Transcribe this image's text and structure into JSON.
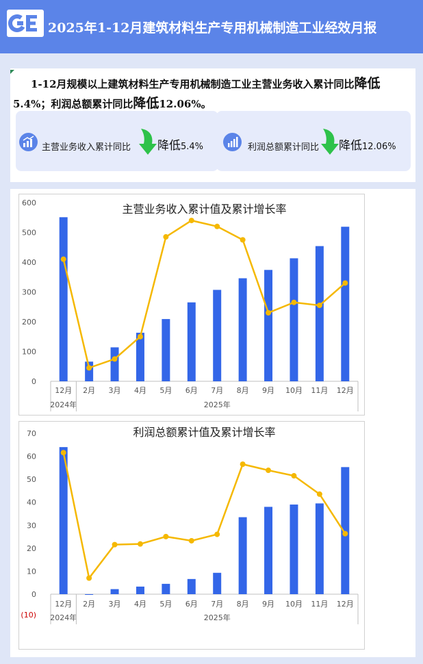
{
  "header": {
    "title": "2025年1-12月建筑材料生产专用机械制造工业经效月报"
  },
  "summary": {
    "part1": "1-12月规模以上建筑材料生产专用机械制造工业主营业务收入累计同比",
    "part2": "降低",
    "part3": "5.4%；利润总额累计同比",
    "part4": "降低",
    "part5": "12.06%。"
  },
  "kpis": [
    {
      "label": "主营业务收入累计同比",
      "direction": "降低",
      "value": "5.4%",
      "arrow": "down-arrow-icon"
    },
    {
      "label": "利润总额累计同比",
      "direction": "降低",
      "value": "12.06%",
      "arrow": "down-arrow-icon"
    }
  ],
  "colors": {
    "bar": "#3366e8",
    "line": "#f5b800",
    "header": "#5b84e8",
    "arrow": "#2ec24a"
  },
  "chart_data": [
    {
      "type": "bar",
      "title": "主营业务收入累计值及累计增长率",
      "categories": [
        "12月",
        "2月",
        "3月",
        "4月",
        "5月",
        "6月",
        "7月",
        "8月",
        "9月",
        "10月",
        "11月",
        "12月"
      ],
      "year_groups": [
        {
          "label": "2024年",
          "span": 1
        },
        {
          "label": "2025年",
          "span": 11
        }
      ],
      "series": [
        {
          "axis": "left",
          "kind": "bar",
          "values": [
            551,
            66,
            114,
            163,
            209,
            265,
            307,
            346,
            374,
            413,
            454,
            519
          ]
        },
        {
          "axis": "right",
          "kind": "line",
          "values": [
            -3.8,
            -11.1,
            -10.5,
            -9.0,
            -2.3,
            -1.2,
            -1.6,
            -2.5,
            -7.4,
            -6.7,
            -6.9,
            -5.4
          ]
        }
      ],
      "ylim_left": [
        0,
        600
      ],
      "yticks_left": [
        "0",
        "100",
        "200",
        "300",
        "400",
        "500",
        "600"
      ],
      "ylim_right": [
        -12,
        0
      ],
      "yticks_right": [
        "-12%",
        "-10%",
        "-8%",
        "-6%",
        "-4%",
        "-2%",
        "0%"
      ]
    },
    {
      "type": "bar",
      "title": "利润总额累计值及累计增长率",
      "categories": [
        "12月",
        "2月",
        "3月",
        "4月",
        "5月",
        "6月",
        "7月",
        "8月",
        "9月",
        "10月",
        "11月",
        "12月"
      ],
      "year_groups": [
        {
          "label": "2024年",
          "span": 1
        },
        {
          "label": "2025年",
          "span": 11
        }
      ],
      "series": [
        {
          "axis": "left",
          "kind": "bar",
          "values": [
            64,
            -0.3,
            2.2,
            3.3,
            4.5,
            6.6,
            9.3,
            33.5,
            38,
            39,
            39.5,
            55.3
          ]
        },
        {
          "axis": "right",
          "kind": "line",
          "values": [
            240,
            -150,
            -46,
            -44,
            -21,
            -34,
            -14,
            204,
            185,
            168,
            111,
            -12
          ]
        }
      ],
      "ylim_left": [
        0,
        70
      ],
      "yticks_left": [
        "0",
        "10",
        "20",
        "30",
        "40",
        "50",
        "60",
        "70"
      ],
      "ylim_right": [
        -200,
        300
      ],
      "yticks_right": [
        "-200%",
        "-150%",
        "-100%",
        "-50%",
        "0%",
        "50%",
        "100%",
        "150%",
        "200%",
        "250%",
        "300%"
      ],
      "below_axis_label": "(10)"
    }
  ]
}
